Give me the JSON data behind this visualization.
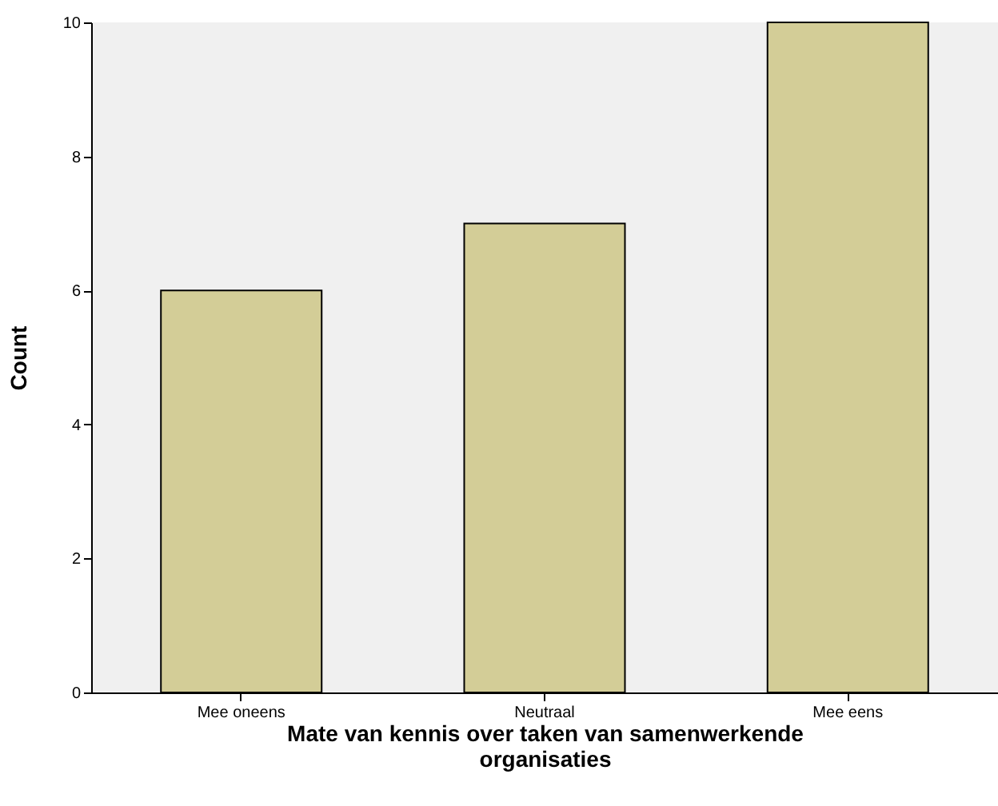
{
  "chart_data": {
    "type": "bar",
    "xlabel": "Mate van kennis over taken van samenwerkende organisaties",
    "ylabel": "Count",
    "categories": [
      "Mee oneens",
      "Neutraal",
      "Mee eens"
    ],
    "values": [
      6,
      7,
      10
    ],
    "color": "#d3cd97",
    "ylim": [
      0,
      10
    ],
    "yticks": [
      0,
      2,
      4,
      6,
      8,
      10
    ],
    "grid": false
  }
}
